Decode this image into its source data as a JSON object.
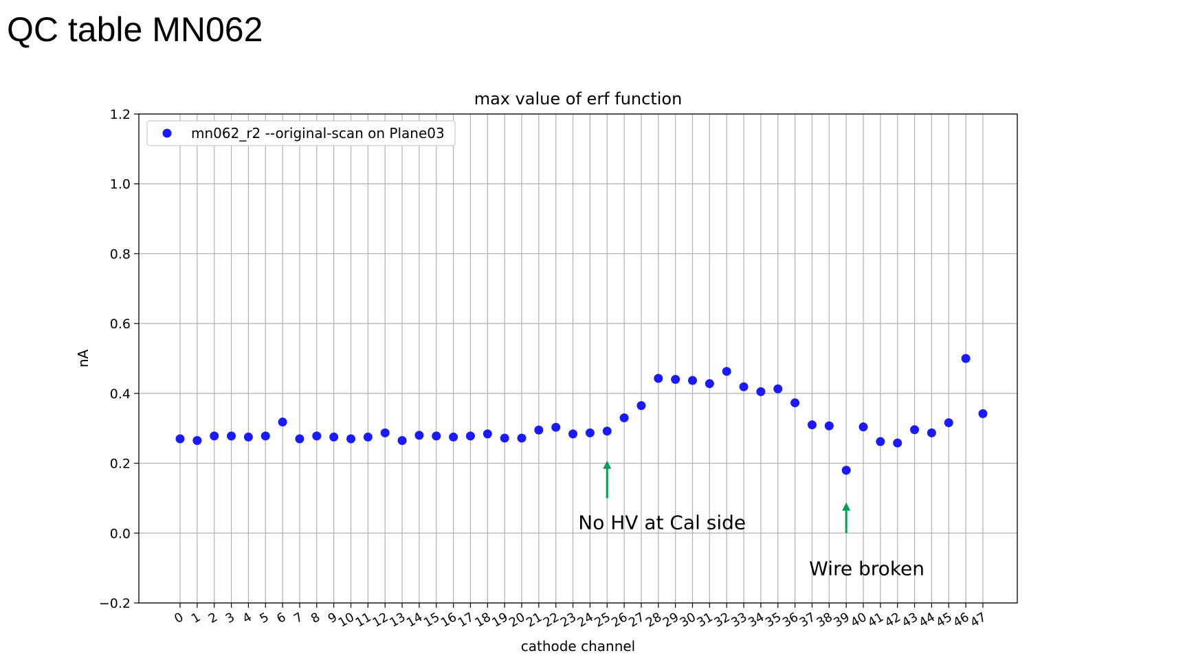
{
  "slide": {
    "title": "QC table MN062"
  },
  "chart_data": {
    "type": "scatter",
    "title": "max value of erf function",
    "xlabel": "cathode channel",
    "ylabel": "nA",
    "ylim": [
      -0.2,
      1.2
    ],
    "yticks": [
      -0.2,
      0.0,
      0.2,
      0.4,
      0.6,
      0.8,
      1.0,
      1.2
    ],
    "ytick_labels": [
      "−0.2",
      "0.0",
      "0.2",
      "0.4",
      "0.6",
      "0.8",
      "1.0",
      "1.2"
    ],
    "x": [
      0,
      1,
      2,
      3,
      4,
      5,
      6,
      7,
      8,
      9,
      10,
      11,
      12,
      13,
      14,
      15,
      16,
      17,
      18,
      19,
      20,
      21,
      22,
      23,
      24,
      25,
      26,
      27,
      28,
      29,
      30,
      31,
      32,
      33,
      34,
      35,
      36,
      37,
      38,
      39,
      40,
      41,
      42,
      43,
      44,
      45,
      46,
      47
    ],
    "x_tick_labels": [
      "0",
      "1",
      "2",
      "3",
      "4",
      "5",
      "6",
      "7",
      "8",
      "9",
      "10",
      "11",
      "12",
      "13",
      "14",
      "15",
      "16",
      "17",
      "18",
      "19",
      "20",
      "21",
      "22",
      "23",
      "24",
      "25",
      "26",
      "27",
      "28",
      "29",
      "30",
      "31",
      "32",
      "33",
      "34",
      "35",
      "36",
      "37",
      "38",
      "39",
      "40",
      "41",
      "42",
      "43",
      "44",
      "45",
      "46",
      "47"
    ],
    "grid": true,
    "legend_position": "top-left",
    "series": [
      {
        "name": "mn062_r2 --original-scan on Plane03",
        "color": "#1a1aff",
        "y": [
          0.27,
          0.265,
          0.278,
          0.278,
          0.275,
          0.278,
          0.318,
          0.27,
          0.278,
          0.275,
          0.27,
          0.275,
          0.287,
          0.265,
          0.28,
          0.278,
          0.275,
          0.278,
          0.284,
          0.272,
          0.272,
          0.295,
          0.303,
          0.284,
          0.287,
          0.292,
          0.33,
          0.365,
          0.443,
          0.44,
          0.437,
          0.428,
          0.463,
          0.419,
          0.405,
          0.413,
          0.373,
          0.31,
          0.307,
          0.18,
          0.304,
          0.262,
          0.258,
          0.296,
          0.287,
          0.316,
          0.5,
          0.342
        ]
      }
    ],
    "annotations": [
      {
        "text": "No HV at Cal side",
        "channel": 25,
        "arrow_color": "#00a050"
      },
      {
        "text": "Wire broken",
        "channel": 39,
        "arrow_color": "#00a050"
      }
    ]
  }
}
